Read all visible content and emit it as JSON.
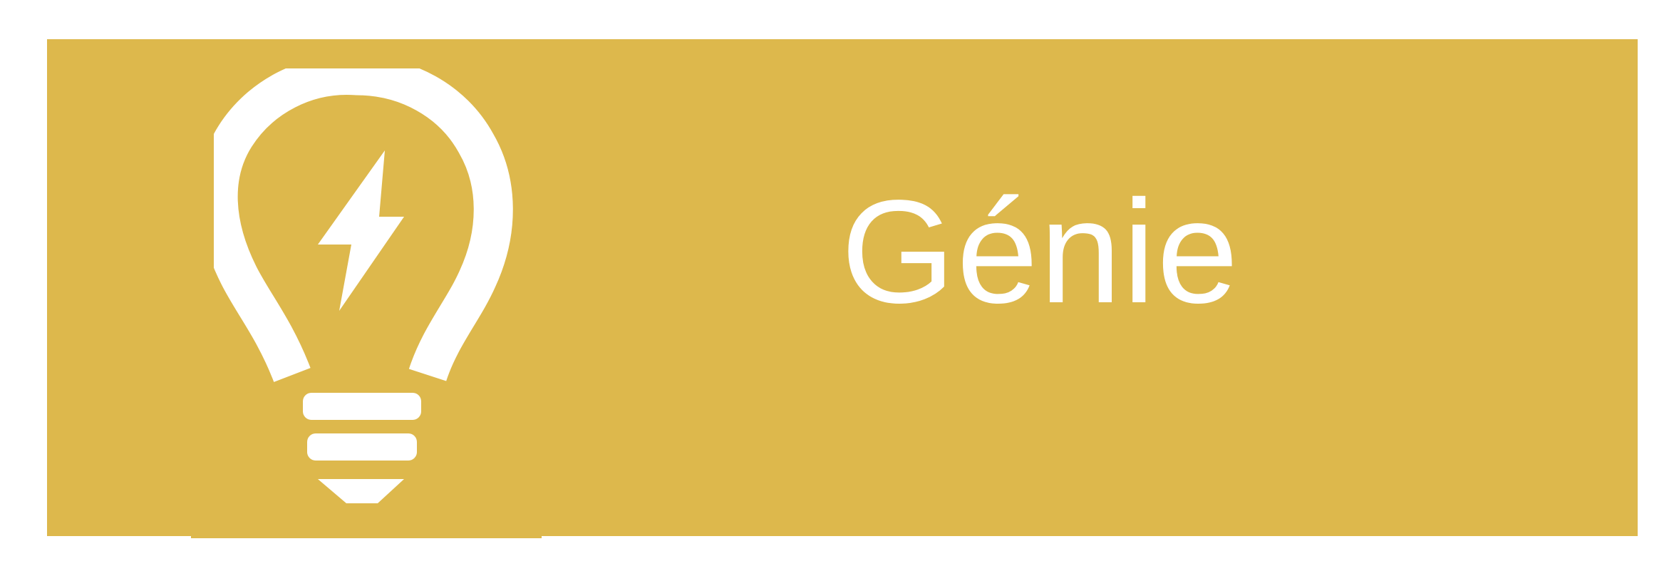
{
  "banner": {
    "label": "Génie",
    "background_color": "#DDB84C",
    "foreground_color": "#FFFFFF",
    "icon": "lightbulb-with-lightning-bolt-icon"
  }
}
